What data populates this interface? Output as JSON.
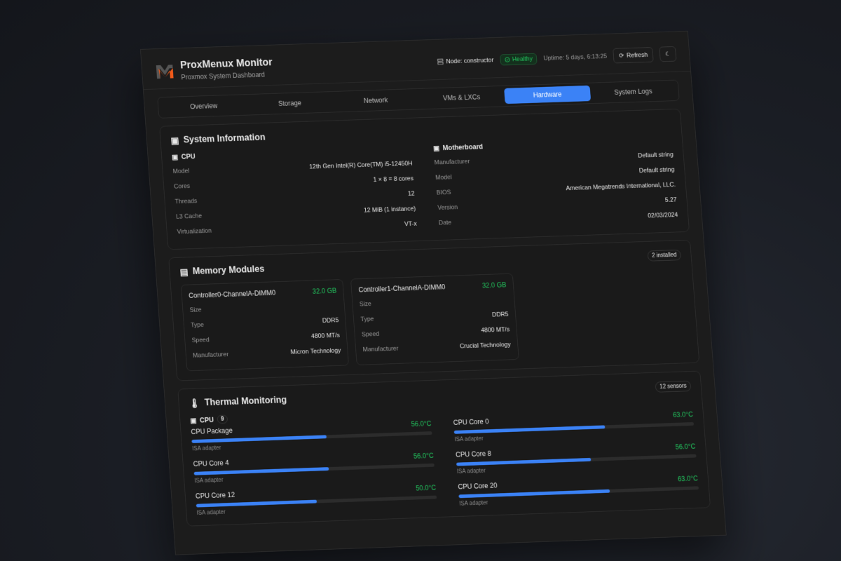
{
  "header": {
    "title": "ProxMenux Monitor",
    "subtitle": "Proxmox System Dashboard",
    "node": "Node: constructor",
    "status": "Healthy",
    "uptime": "Uptime: 5 days, 6:13:25",
    "refresh": "Refresh"
  },
  "tabs": [
    {
      "label": "Overview"
    },
    {
      "label": "Storage"
    },
    {
      "label": "Network"
    },
    {
      "label": "VMs & LXCs"
    },
    {
      "label": "Hardware",
      "active": true
    },
    {
      "label": "System Logs"
    }
  ],
  "system": {
    "title": "System Information",
    "cpu": {
      "title": "CPU",
      "rows": [
        [
          "Model",
          "12th Gen Intel(R) Core(TM) i5-12450H"
        ],
        [
          "Cores",
          "1 × 8 = 8 cores"
        ],
        [
          "Threads",
          "12"
        ],
        [
          "L3 Cache",
          "12 MiB (1 instance)"
        ],
        [
          "Virtualization",
          "VT-x"
        ]
      ]
    },
    "board": {
      "title": "Motherboard",
      "rows": [
        [
          "Manufacturer",
          "Default string"
        ],
        [
          "Model",
          "Default string"
        ],
        [
          "BIOS",
          "American Megatrends International, LLC."
        ],
        [
          "Version",
          "5.27"
        ],
        [
          "Date",
          "02/03/2024"
        ]
      ]
    }
  },
  "memory": {
    "title": "Memory Modules",
    "badge": "2 installed",
    "modules": [
      {
        "name": "Controller0-ChannelA-DIMM0",
        "size": "32.0 GB",
        "rows": [
          [
            "Size",
            ""
          ],
          [
            "Type",
            "DDR5"
          ],
          [
            "Speed",
            "4800 MT/s"
          ],
          [
            "Manufacturer",
            "Micron Technology"
          ]
        ]
      },
      {
        "name": "Controller1-ChannelA-DIMM0",
        "size": "32.0 GB",
        "rows": [
          [
            "Size",
            ""
          ],
          [
            "Type",
            "DDR5"
          ],
          [
            "Speed",
            "4800 MT/s"
          ],
          [
            "Manufacturer",
            "Crucial Technology"
          ]
        ]
      }
    ]
  },
  "thermal": {
    "title": "Thermal Monitoring",
    "badge": "12 sensors",
    "group": "CPU",
    "group_count": "9",
    "sensors": [
      {
        "name": "CPU Package",
        "temp": "56.0°C",
        "pct": 56,
        "adapter": "ISA adapter"
      },
      {
        "name": "CPU Core 0",
        "temp": "63.0°C",
        "pct": 63,
        "adapter": "ISA adapter"
      },
      {
        "name": "CPU Core 4",
        "temp": "56.0°C",
        "pct": 56,
        "adapter": "ISA adapter"
      },
      {
        "name": "CPU Core 8",
        "temp": "56.0°C",
        "pct": 56,
        "adapter": "ISA adapter"
      },
      {
        "name": "CPU Core 12",
        "temp": "50.0°C",
        "pct": 50,
        "adapter": "ISA adapter"
      },
      {
        "name": "CPU Core 20",
        "temp": "63.0°C",
        "pct": 63,
        "adapter": "ISA adapter"
      }
    ]
  },
  "colors": {
    "accent": "#3b82f6",
    "ok": "#22c55e",
    "logo": "#f05a1a"
  }
}
